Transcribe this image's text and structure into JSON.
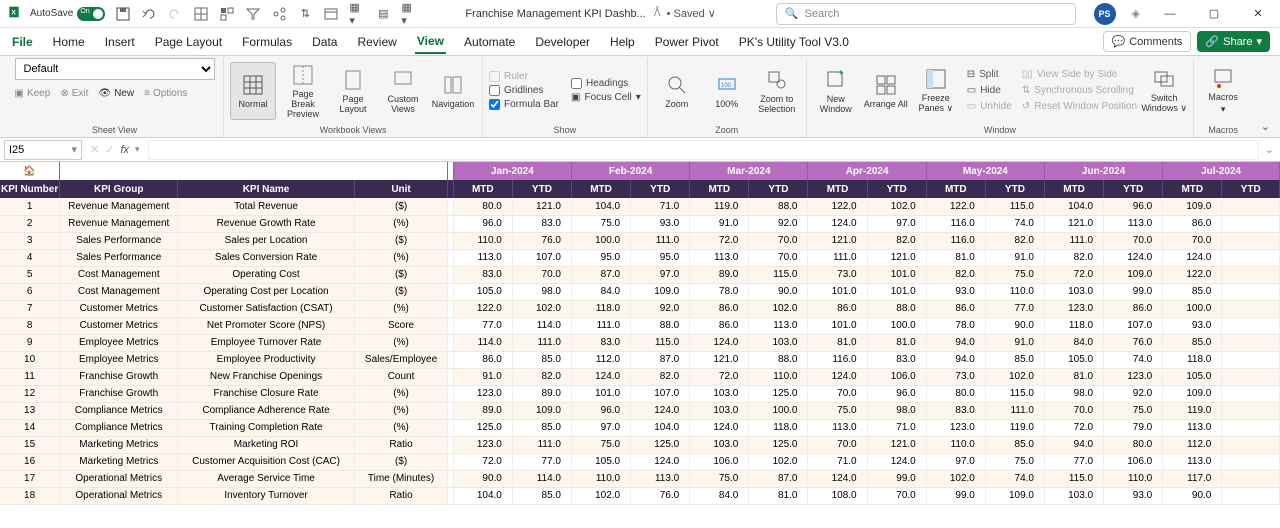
{
  "titleBar": {
    "autosave": "AutoSave",
    "docTitle": "Franchise Management KPI Dashb...",
    "savedStatus": "• Saved ∨",
    "searchPlaceholder": "Search",
    "avatar": "PS"
  },
  "tabs": {
    "file": "File",
    "home": "Home",
    "insert": "Insert",
    "pageLayout": "Page Layout",
    "formulas": "Formulas",
    "data": "Data",
    "review": "Review",
    "view": "View",
    "automate": "Automate",
    "developer": "Developer",
    "help": "Help",
    "powerPivot": "Power Pivot",
    "utilityTool": "PK's Utility Tool V3.0",
    "comments": "Comments",
    "share": "Share"
  },
  "ribbon": {
    "sheetView": {
      "default": "Default",
      "keep": "Keep",
      "exit": "Exit",
      "new": "New",
      "options": "Options",
      "label": "Sheet View"
    },
    "workbookViews": {
      "normal": "Normal",
      "pageBreak": "Page Break Preview",
      "pageLayout": "Page Layout",
      "customViews": "Custom Views",
      "navigation": "Navigation",
      "label": "Workbook Views"
    },
    "show": {
      "ruler": "Ruler",
      "gridlines": "Gridlines",
      "formulaBar": "Formula Bar",
      "headings": "Headings",
      "focusCell": "Focus Cell",
      "label": "Show"
    },
    "zoom": {
      "zoom": "Zoom",
      "z100": "100%",
      "zoomSel": "Zoom to Selection",
      "label": "Zoom"
    },
    "window": {
      "newWindow": "New Window",
      "arrangeAll": "Arrange All",
      "freezePanes": "Freeze Panes ∨",
      "split": "Split",
      "hide": "Hide",
      "unhide": "Unhide",
      "viewSide": "View Side by Side",
      "syncScroll": "Synchronous Scrolling",
      "resetPos": "Reset Window Position",
      "switchWindows": "Switch Windows ∨",
      "label": "Window"
    },
    "macros": {
      "macros": "Macros",
      "label": "Macros"
    }
  },
  "formulaBar": {
    "nameBox": "I25"
  },
  "table": {
    "months": [
      "Jan-2024",
      "Feb-2024",
      "Mar-2024",
      "Apr-2024",
      "May-2024",
      "Jun-2024",
      "Jul-2024"
    ],
    "headers": {
      "kpiNumber": "KPI Number",
      "kpiGroup": "KPI Group",
      "kpiName": "KPI Name",
      "unit": "Unit",
      "mtd": "MTD",
      "ytd": "YTD"
    },
    "rows": [
      {
        "n": "1",
        "g": "Revenue Management",
        "name": "Total Revenue",
        "u": "($)",
        "v": [
          "80.0",
          "121.0",
          "104.0",
          "71.0",
          "119.0",
          "88.0",
          "122.0",
          "102.0",
          "122.0",
          "115.0",
          "104.0",
          "96.0",
          "109.0"
        ]
      },
      {
        "n": "2",
        "g": "Revenue Management",
        "name": "Revenue Growth Rate",
        "u": "(%)",
        "v": [
          "96.0",
          "83.0",
          "75.0",
          "93.0",
          "91.0",
          "92.0",
          "124.0",
          "97.0",
          "116.0",
          "74.0",
          "121.0",
          "113.0",
          "86.0"
        ]
      },
      {
        "n": "3",
        "g": "Sales Performance",
        "name": "Sales per Location",
        "u": "($)",
        "v": [
          "110.0",
          "76.0",
          "100.0",
          "111.0",
          "72.0",
          "70.0",
          "121.0",
          "82.0",
          "116.0",
          "82.0",
          "111.0",
          "70.0",
          "70.0"
        ]
      },
      {
        "n": "4",
        "g": "Sales Performance",
        "name": "Sales Conversion Rate",
        "u": "(%)",
        "v": [
          "113.0",
          "107.0",
          "95.0",
          "95.0",
          "113.0",
          "70.0",
          "111.0",
          "121.0",
          "81.0",
          "91.0",
          "82.0",
          "124.0",
          "124.0"
        ]
      },
      {
        "n": "5",
        "g": "Cost Management",
        "name": "Operating Cost",
        "u": "($)",
        "v": [
          "83.0",
          "70.0",
          "87.0",
          "97.0",
          "89.0",
          "115.0",
          "73.0",
          "101.0",
          "82.0",
          "75.0",
          "72.0",
          "109.0",
          "122.0"
        ]
      },
      {
        "n": "6",
        "g": "Cost Management",
        "name": "Operating Cost per Location",
        "u": "($)",
        "v": [
          "105.0",
          "98.0",
          "84.0",
          "109.0",
          "78.0",
          "90.0",
          "101.0",
          "101.0",
          "93.0",
          "110.0",
          "103.0",
          "99.0",
          "85.0"
        ]
      },
      {
        "n": "7",
        "g": "Customer Metrics",
        "name": "Customer Satisfaction (CSAT)",
        "u": "(%)",
        "v": [
          "122.0",
          "102.0",
          "118.0",
          "92.0",
          "86.0",
          "102.0",
          "86.0",
          "88.0",
          "86.0",
          "77.0",
          "123.0",
          "86.0",
          "100.0"
        ]
      },
      {
        "n": "8",
        "g": "Customer Metrics",
        "name": "Net Promoter Score (NPS)",
        "u": "Score",
        "v": [
          "77.0",
          "114.0",
          "111.0",
          "88.0",
          "86.0",
          "113.0",
          "101.0",
          "100.0",
          "78.0",
          "90.0",
          "118.0",
          "107.0",
          "93.0"
        ]
      },
      {
        "n": "9",
        "g": "Employee Metrics",
        "name": "Employee Turnover Rate",
        "u": "(%)",
        "v": [
          "114.0",
          "111.0",
          "83.0",
          "115.0",
          "124.0",
          "103.0",
          "81.0",
          "81.0",
          "94.0",
          "91.0",
          "84.0",
          "76.0",
          "85.0"
        ]
      },
      {
        "n": "10",
        "g": "Employee Metrics",
        "name": "Employee Productivity",
        "u": "Sales/Employee",
        "v": [
          "86.0",
          "85.0",
          "112.0",
          "87.0",
          "121.0",
          "88.0",
          "116.0",
          "83.0",
          "94.0",
          "85.0",
          "105.0",
          "74.0",
          "118.0"
        ]
      },
      {
        "n": "11",
        "g": "Franchise Growth",
        "name": "New Franchise Openings",
        "u": "Count",
        "v": [
          "91.0",
          "82.0",
          "124.0",
          "82.0",
          "72.0",
          "110.0",
          "124.0",
          "106.0",
          "73.0",
          "102.0",
          "81.0",
          "123.0",
          "105.0"
        ]
      },
      {
        "n": "12",
        "g": "Franchise Growth",
        "name": "Franchise Closure Rate",
        "u": "(%)",
        "v": [
          "123.0",
          "89.0",
          "101.0",
          "107.0",
          "103.0",
          "125.0",
          "70.0",
          "96.0",
          "80.0",
          "115.0",
          "98.0",
          "92.0",
          "109.0"
        ]
      },
      {
        "n": "13",
        "g": "Compliance Metrics",
        "name": "Compliance Adherence Rate",
        "u": "(%)",
        "v": [
          "89.0",
          "109.0",
          "96.0",
          "124.0",
          "103.0",
          "100.0",
          "75.0",
          "98.0",
          "83.0",
          "111.0",
          "70.0",
          "75.0",
          "119.0"
        ]
      },
      {
        "n": "14",
        "g": "Compliance Metrics",
        "name": "Training Completion Rate",
        "u": "(%)",
        "v": [
          "125.0",
          "85.0",
          "97.0",
          "104.0",
          "124.0",
          "118.0",
          "113.0",
          "71.0",
          "123.0",
          "119.0",
          "72.0",
          "79.0",
          "113.0"
        ]
      },
      {
        "n": "15",
        "g": "Marketing Metrics",
        "name": "Marketing ROI",
        "u": "Ratio",
        "v": [
          "123.0",
          "111.0",
          "75.0",
          "125.0",
          "103.0",
          "125.0",
          "70.0",
          "121.0",
          "110.0",
          "85.0",
          "94.0",
          "80.0",
          "112.0"
        ]
      },
      {
        "n": "16",
        "g": "Marketing Metrics",
        "name": "Customer Acquisition Cost (CAC)",
        "u": "($)",
        "v": [
          "72.0",
          "77.0",
          "105.0",
          "124.0",
          "106.0",
          "102.0",
          "71.0",
          "124.0",
          "97.0",
          "75.0",
          "77.0",
          "106.0",
          "113.0"
        ]
      },
      {
        "n": "17",
        "g": "Operational Metrics",
        "name": "Average Service Time",
        "u": "Time (Minutes)",
        "v": [
          "90.0",
          "114.0",
          "110.0",
          "113.0",
          "75.0",
          "87.0",
          "124.0",
          "99.0",
          "102.0",
          "74.0",
          "115.0",
          "110.0",
          "117.0"
        ]
      },
      {
        "n": "18",
        "g": "Operational Metrics",
        "name": "Inventory Turnover",
        "u": "Ratio",
        "v": [
          "104.0",
          "85.0",
          "102.0",
          "76.0",
          "84.0",
          "81.0",
          "108.0",
          "70.0",
          "99.0",
          "109.0",
          "103.0",
          "93.0",
          "90.0"
        ]
      }
    ]
  }
}
